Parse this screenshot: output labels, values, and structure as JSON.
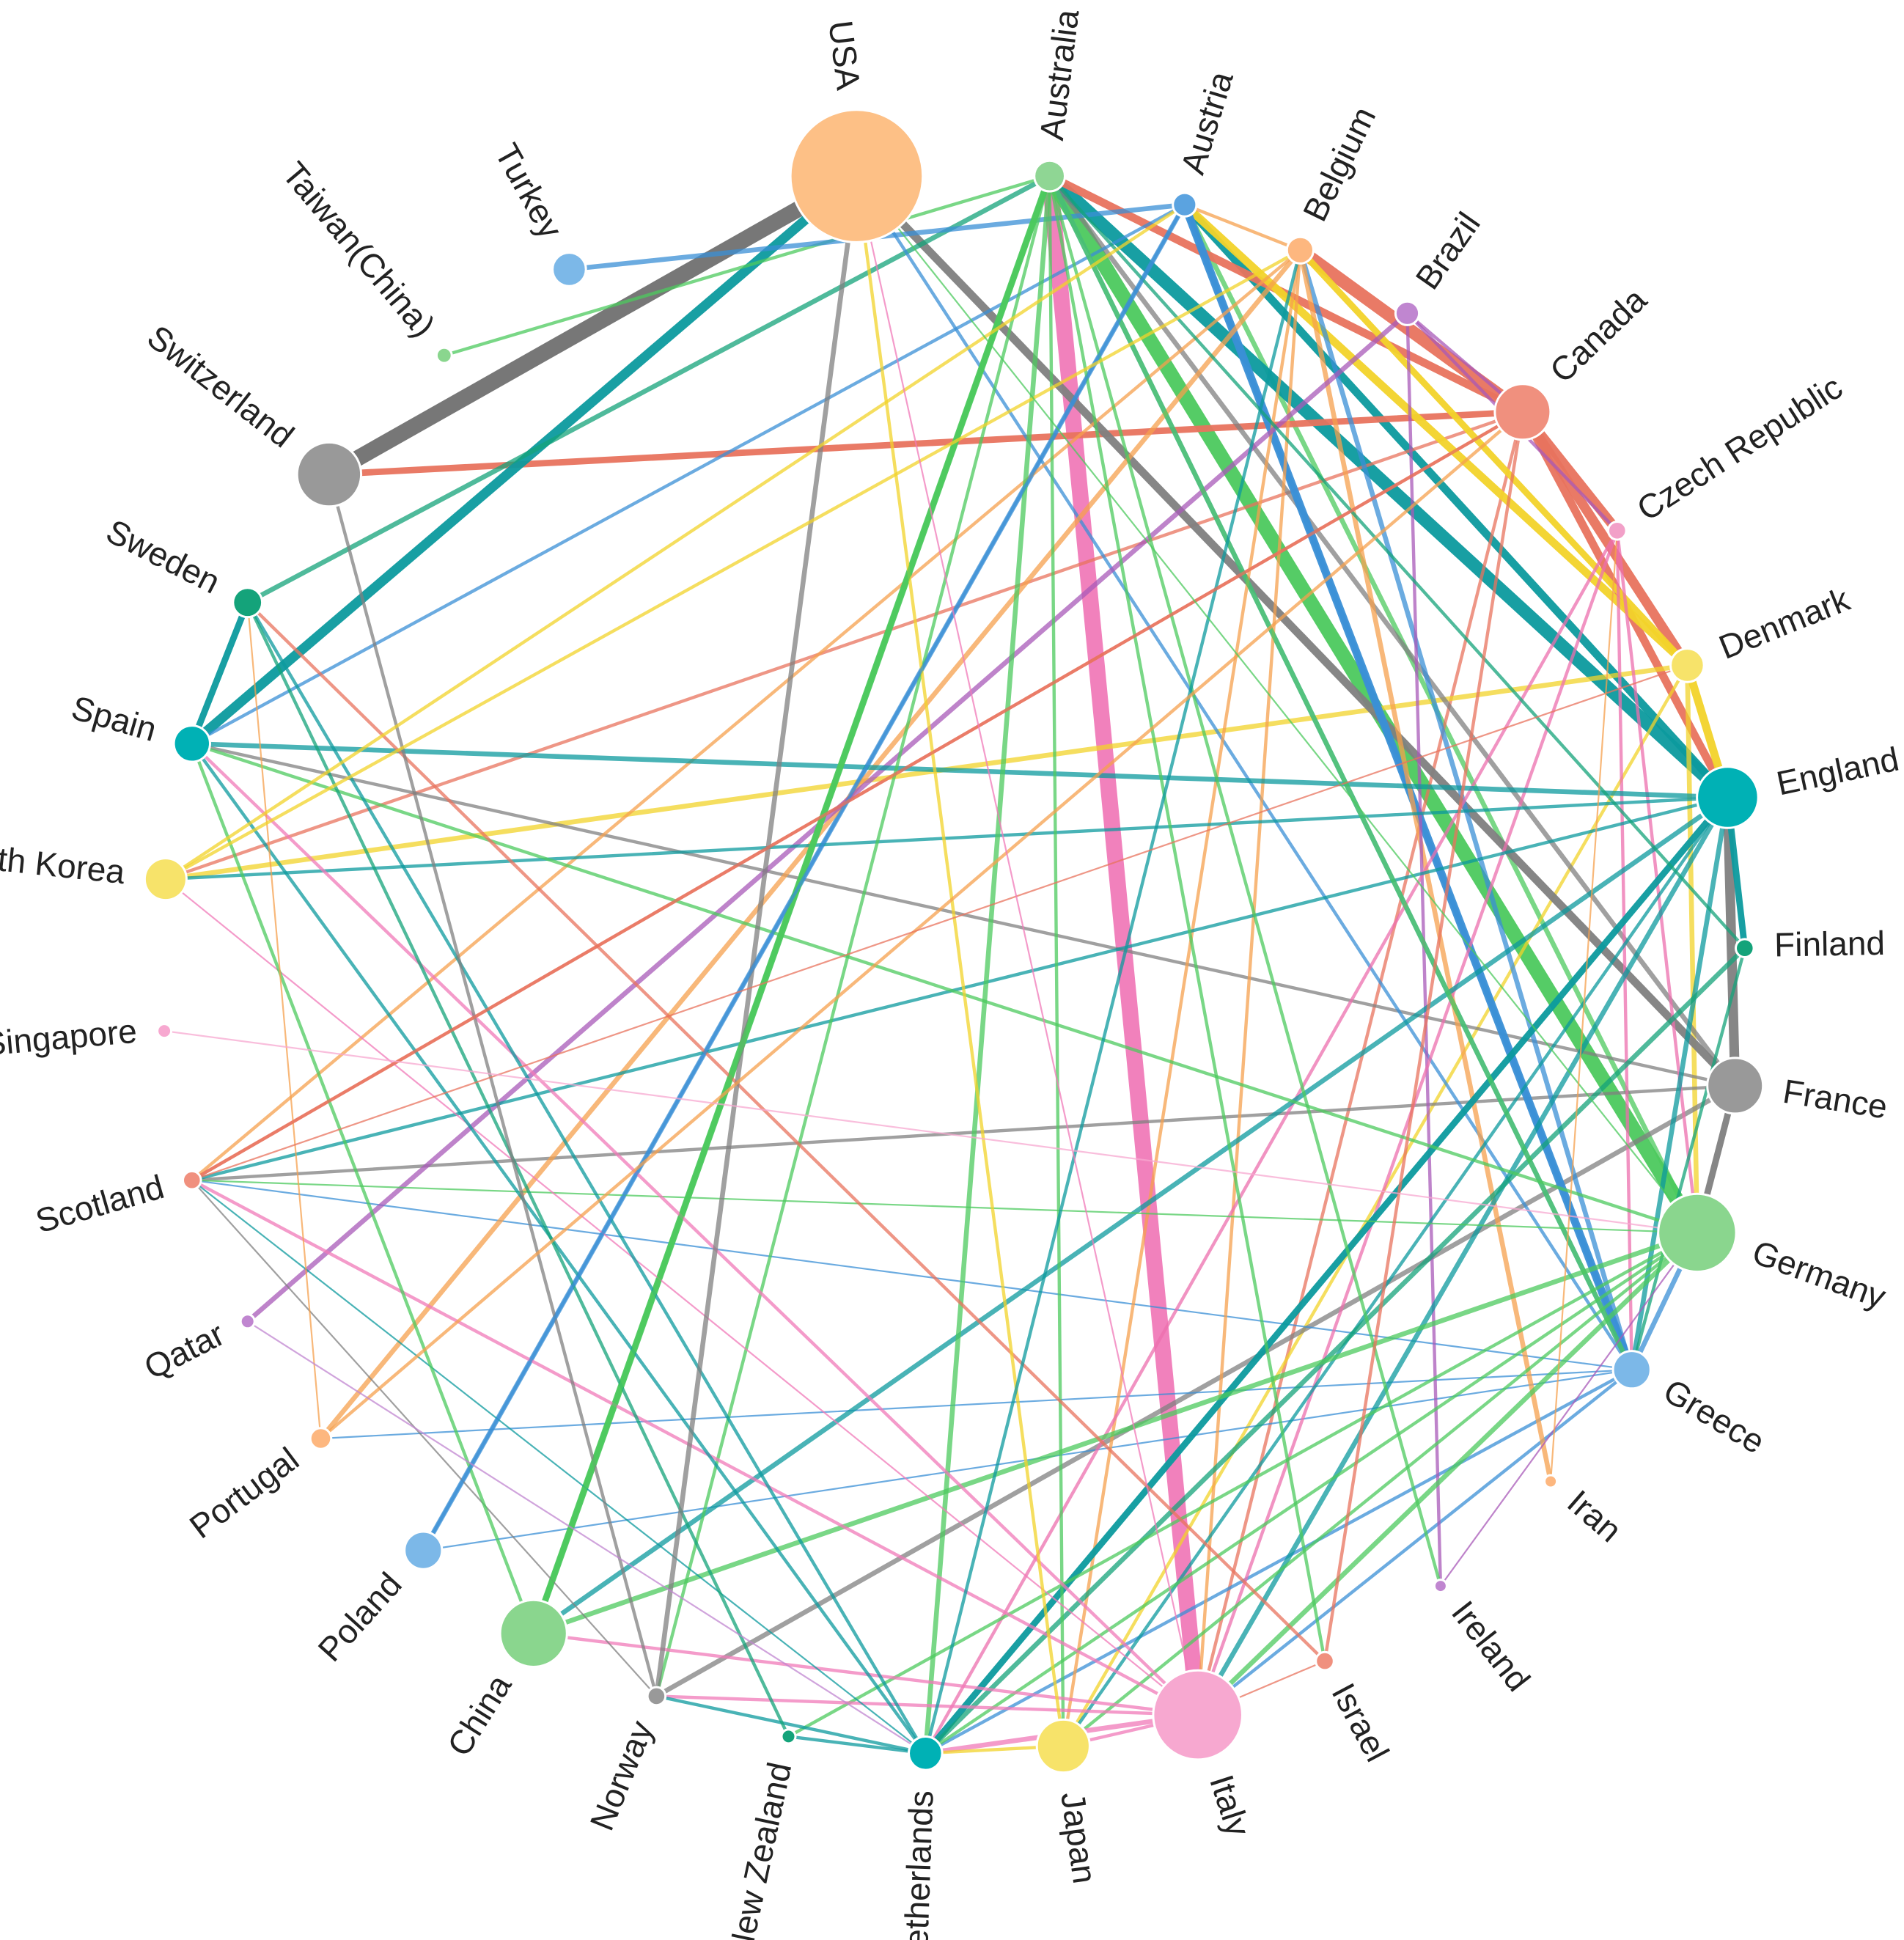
{
  "chart_data": {
    "type": "chord",
    "nodes": [
      {
        "name": "USA",
        "angle_deg": -97,
        "size": 95,
        "color": "#fdc086"
      },
      {
        "name": "Australia",
        "angle_deg": -83,
        "size": 22,
        "color": "#8fd694"
      },
      {
        "name": "Austria",
        "angle_deg": -73,
        "size": 17,
        "color": "#5ba3e0"
      },
      {
        "name": "Belgium",
        "angle_deg": -64,
        "size": 19,
        "color": "#fdb77f"
      },
      {
        "name": "Brazil",
        "angle_deg": -55,
        "size": 17,
        "color": "#c086d0"
      },
      {
        "name": "Canada",
        "angle_deg": -44,
        "size": 40,
        "color": "#f0907e"
      },
      {
        "name": "Czech Republic",
        "angle_deg": -33,
        "size": 13,
        "color": "#f2a0c8"
      },
      {
        "name": "Denmark",
        "angle_deg": -22,
        "size": 24,
        "color": "#f7e36a"
      },
      {
        "name": "England",
        "angle_deg": -12,
        "size": 44,
        "color": "#00b1b5"
      },
      {
        "name": "Finland",
        "angle_deg": -1,
        "size": 13,
        "color": "#14a37a"
      },
      {
        "name": "France",
        "angle_deg": 9,
        "size": 40,
        "color": "#999999"
      },
      {
        "name": "Germany",
        "angle_deg": 20,
        "size": 56,
        "color": "#8ad68e"
      },
      {
        "name": "Greece",
        "angle_deg": 31,
        "size": 27,
        "color": "#7cb8e8"
      },
      {
        "name": "Iran",
        "angle_deg": 41,
        "size": 9,
        "color": "#fdb77f"
      },
      {
        "name": "Ireland",
        "angle_deg": 52,
        "size": 9,
        "color": "#c086d0"
      },
      {
        "name": "Israel",
        "angle_deg": 62,
        "size": 13,
        "color": "#f0907e"
      },
      {
        "name": "Italy",
        "angle_deg": 72,
        "size": 64,
        "color": "#f7a8d0"
      },
      {
        "name": "Japan",
        "angle_deg": 82,
        "size": 38,
        "color": "#f7e36a"
      },
      {
        "name": "Netherlands",
        "angle_deg": 92,
        "size": 24,
        "color": "#00b1b5"
      },
      {
        "name": "New Zealand",
        "angle_deg": 102,
        "size": 10,
        "color": "#14a37a"
      },
      {
        "name": "Norway",
        "angle_deg": 112,
        "size": 13,
        "color": "#999999"
      },
      {
        "name": "China",
        "angle_deg": 122,
        "size": 48,
        "color": "#8ad68e"
      },
      {
        "name": "Poland",
        "angle_deg": 132,
        "size": 27,
        "color": "#7cb8e8"
      },
      {
        "name": "Portugal",
        "angle_deg": 143,
        "size": 15,
        "color": "#fdb77f"
      },
      {
        "name": "Qatar",
        "angle_deg": 153,
        "size": 10,
        "color": "#c086d0"
      },
      {
        "name": "Scotland",
        "angle_deg": 164,
        "size": 13,
        "color": "#f0907e"
      },
      {
        "name": "Singapore",
        "angle_deg": 175,
        "size": 10,
        "color": "#f7a8d0"
      },
      {
        "name": "South Korea",
        "angle_deg": 186,
        "size": 30,
        "color": "#f7e36a"
      },
      {
        "name": "Spain",
        "angle_deg": 196,
        "size": 26,
        "color": "#00b1b5"
      },
      {
        "name": "Sweden",
        "angle_deg": 207,
        "size": 21,
        "color": "#14a37a"
      },
      {
        "name": "Switzerland",
        "angle_deg": 218,
        "size": 46,
        "color": "#999999"
      },
      {
        "name": "Taiwan(China)",
        "angle_deg": 230,
        "size": 11,
        "color": "#8ad68e"
      },
      {
        "name": "Turkey",
        "angle_deg": 241,
        "size": 24,
        "color": "#7cb8e8"
      }
    ],
    "edges": [
      [
        "Italy",
        "Australia",
        10,
        "#f07ab8"
      ],
      [
        "Germany",
        "Australia",
        9,
        "#4cc95e"
      ],
      [
        "Germany",
        "Austria",
        3,
        "#4cc95e"
      ],
      [
        "England",
        "Australia",
        8,
        "#0c9a9e"
      ],
      [
        "England",
        "Austria",
        5,
        "#0c9a9e"
      ],
      [
        "Canada",
        "Australia",
        5,
        "#e8735e"
      ],
      [
        "Canada",
        "Belgium",
        8,
        "#e8735e"
      ],
      [
        "Canada",
        "Switzerland",
        4,
        "#e8735e"
      ],
      [
        "Canada",
        "Czech Republic",
        6,
        "#e8735e"
      ],
      [
        "Canada",
        "Denmark",
        6,
        "#e8735e"
      ],
      [
        "Canada",
        "England",
        5,
        "#e8735e"
      ],
      [
        "Canada",
        "South Korea",
        2,
        "#e8735e"
      ],
      [
        "Canada",
        "Scotland",
        2,
        "#e8735e"
      ],
      [
        "Canada",
        "Italy",
        2,
        "#e8735e"
      ],
      [
        "Denmark",
        "Austria",
        5,
        "#f2d32a"
      ],
      [
        "Denmark",
        "Belgium",
        4,
        "#f2d32a"
      ],
      [
        "Denmark",
        "South Korea",
        3,
        "#f2d32a"
      ],
      [
        "Denmark",
        "England",
        5,
        "#f2d32a"
      ],
      [
        "Denmark",
        "Germany",
        3,
        "#f2d32a"
      ],
      [
        "Denmark",
        "Japan",
        2,
        "#f2d32a"
      ],
      [
        "France",
        "USA",
        5,
        "#808080"
      ],
      [
        "France",
        "England",
        6,
        "#808080"
      ],
      [
        "France",
        "Germany",
        4,
        "#808080"
      ],
      [
        "France",
        "Spain",
        2,
        "#808080"
      ],
      [
        "France",
        "Norway",
        3,
        "#808080"
      ],
      [
        "France",
        "Australia",
        3,
        "#808080"
      ],
      [
        "France",
        "Scotland",
        2,
        "#808080"
      ],
      [
        "Switzerland",
        "USA",
        10,
        "#707070"
      ],
      [
        "Spain",
        "USA",
        6,
        "#0c9a9e"
      ],
      [
        "Spain",
        "Sweden",
        4,
        "#0c9a9e"
      ],
      [
        "Sweden",
        "Australia",
        3,
        "#14a37a"
      ],
      [
        "Taiwan(China)",
        "Australia",
        2,
        "#4cc95e"
      ],
      [
        "Turkey",
        "Austria",
        3,
        "#3a8fd6"
      ],
      [
        "Greece",
        "Austria",
        3,
        "#3a8fd6"
      ],
      [
        "Greece",
        "Belgium",
        3,
        "#3a8fd6"
      ],
      [
        "Greece",
        "USA",
        2,
        "#3a8fd6"
      ],
      [
        "Greece",
        "Germany",
        3,
        "#3a8fd6"
      ],
      [
        "Greece",
        "Australia",
        3,
        "#3a8fd6"
      ],
      [
        "Greece",
        "Italy",
        2,
        "#3a8fd6"
      ],
      [
        "Greece",
        "Netherlands",
        2,
        "#3a8fd6"
      ],
      [
        "Greece",
        "Portugal",
        1,
        "#3a8fd6"
      ],
      [
        "Greece",
        "Scotland",
        1,
        "#3a8fd6"
      ],
      [
        "Greece",
        "Poland",
        1,
        "#3a8fd6"
      ],
      [
        "Austria",
        "Greece",
        5,
        "#3a8fd6"
      ],
      [
        "Austria",
        "Poland",
        3,
        "#3a8fd6"
      ],
      [
        "Austria",
        "Spain",
        2,
        "#3a8fd6"
      ],
      [
        "Belgium",
        "Portugal",
        3,
        "#f5a04e"
      ],
      [
        "Belgium",
        "Scotland",
        2,
        "#f5a04e"
      ],
      [
        "Belgium",
        "Iran",
        3,
        "#f5a04e"
      ],
      [
        "Belgium",
        "Italy",
        2,
        "#f5a04e"
      ],
      [
        "Belgium",
        "Austria",
        2,
        "#f5a04e"
      ],
      [
        "Belgium",
        "Japan",
        2,
        "#f5a04e"
      ],
      [
        "Brazil",
        "Qatar",
        3,
        "#a85ab8"
      ],
      [
        "Brazil",
        "Ireland",
        2,
        "#a85ab8"
      ],
      [
        "Brazil",
        "Czech Republic",
        2,
        "#a85ab8"
      ],
      [
        "Brazil",
        "Canada",
        2,
        "#a85ab8"
      ],
      [
        "Czech Republic",
        "Germany",
        2,
        "#ec6fae"
      ],
      [
        "Czech Republic",
        "Netherlands",
        2,
        "#ec6fae"
      ],
      [
        "Czech Republic",
        "Greece",
        2,
        "#ec6fae"
      ],
      [
        "Czech Republic",
        "Italy",
        2,
        "#ec6fae"
      ],
      [
        "England",
        "Netherlands",
        4,
        "#0c9a9e"
      ],
      [
        "England",
        "Spain",
        3,
        "#0c9a9e"
      ],
      [
        "England",
        "Finland",
        4,
        "#0c9a9e"
      ],
      [
        "England",
        "China",
        3,
        "#0c9a9e"
      ],
      [
        "England",
        "Scotland",
        2,
        "#0c9a9e"
      ],
      [
        "England",
        "South Korea",
        2,
        "#0c9a9e"
      ],
      [
        "England",
        "Italy",
        3,
        "#0c9a9e"
      ],
      [
        "England",
        "Greece",
        3,
        "#0c9a9e"
      ],
      [
        "England",
        "Japan",
        2,
        "#0c9a9e"
      ],
      [
        "Finland",
        "Netherlands",
        3,
        "#14a37a"
      ],
      [
        "Finland",
        "Australia",
        2,
        "#14a37a"
      ],
      [
        "Finland",
        "Greece",
        2,
        "#14a37a"
      ],
      [
        "Germany",
        "China",
        3,
        "#4cc95e"
      ],
      [
        "Germany",
        "Netherlands",
        2,
        "#4cc95e"
      ],
      [
        "Germany",
        "Spain",
        2,
        "#4cc95e"
      ],
      [
        "Germany",
        "Italy",
        3,
        "#4cc95e"
      ],
      [
        "Germany",
        "Japan",
        2,
        "#4cc95e"
      ],
      [
        "Germany",
        "New Zealand",
        2,
        "#4cc95e"
      ],
      [
        "Germany",
        "Scotland",
        1,
        "#4cc95e"
      ],
      [
        "Australia",
        "China",
        4,
        "#4cc95e"
      ],
      [
        "Australia",
        "Netherlands",
        3,
        "#4cc95e"
      ],
      [
        "Australia",
        "Japan",
        2,
        "#4cc95e"
      ],
      [
        "Australia",
        "Norway",
        2,
        "#4cc95e"
      ],
      [
        "Australia",
        "Ireland",
        2,
        "#4cc95e"
      ],
      [
        "Australia",
        "Israel",
        2,
        "#4cc95e"
      ],
      [
        "Australia",
        "Greece",
        3,
        "#4cc95e"
      ],
      [
        "Italy",
        "Netherlands",
        3,
        "#f07ab8"
      ],
      [
        "Italy",
        "Norway",
        2,
        "#f07ab8"
      ],
      [
        "Italy",
        "Scotland",
        2,
        "#f07ab8"
      ],
      [
        "Italy",
        "Spain",
        2,
        "#f07ab8"
      ],
      [
        "Italy",
        "China",
        2,
        "#f07ab8"
      ],
      [
        "Italy",
        "Japan",
        2,
        "#f07ab8"
      ],
      [
        "Italy",
        "South Korea",
        1,
        "#f07ab8"
      ],
      [
        "Israel",
        "Sweden",
        2,
        "#e8735e"
      ],
      [
        "Israel",
        "Canada",
        2,
        "#e8735e"
      ],
      [
        "Israel",
        "Italy",
        1,
        "#e8735e"
      ],
      [
        "Japan",
        "Netherlands",
        2,
        "#f2d32a"
      ],
      [
        "Japan",
        "USA",
        2,
        "#f2d32a"
      ],
      [
        "Netherlands",
        "Norway",
        2,
        "#0c9a9e"
      ],
      [
        "Netherlands",
        "Sweden",
        2,
        "#0c9a9e"
      ],
      [
        "Netherlands",
        "New Zealand",
        2,
        "#0c9a9e"
      ],
      [
        "Netherlands",
        "Scotland",
        1,
        "#0c9a9e"
      ],
      [
        "Netherlands",
        "Belgium",
        2,
        "#0c9a9e"
      ],
      [
        "Netherlands",
        "Spain",
        2,
        "#0c9a9e"
      ],
      [
        "New Zealand",
        "Sweden",
        2,
        "#14a37a"
      ],
      [
        "Norway",
        "USA",
        3,
        "#808080"
      ],
      [
        "Norway",
        "Scotland",
        1,
        "#808080"
      ],
      [
        "Norway",
        "Switzerland",
        2,
        "#808080"
      ],
      [
        "China",
        "Spain",
        2,
        "#4cc95e"
      ],
      [
        "China",
        "Australia",
        3,
        "#4cc95e"
      ],
      [
        "Poland",
        "Austria",
        2,
        "#3a8fd6"
      ],
      [
        "Portugal",
        "Canada",
        2,
        "#f5a04e"
      ],
      [
        "Portugal",
        "Sweden",
        1,
        "#f5a04e"
      ],
      [
        "Scotland",
        "Canada",
        2,
        "#e8735e"
      ],
      [
        "Scotland",
        "Denmark",
        1,
        "#e8735e"
      ],
      [
        "South Korea",
        "Austria",
        2,
        "#f2d32a"
      ],
      [
        "South Korea",
        "Belgium",
        2,
        "#f2d32a"
      ],
      [
        "USA",
        "Germany",
        1,
        "#4cc95e"
      ],
      [
        "USA",
        "Italy",
        1,
        "#f07ab8"
      ],
      [
        "Ireland",
        "Germany",
        1,
        "#a85ab8"
      ],
      [
        "Iran",
        "Czech Republic",
        1,
        "#f5a04e"
      ],
      [
        "Qatar",
        "Netherlands",
        1,
        "#c086d0"
      ],
      [
        "Singapore",
        "Germany",
        1,
        "#f7a8d0"
      ]
    ]
  }
}
